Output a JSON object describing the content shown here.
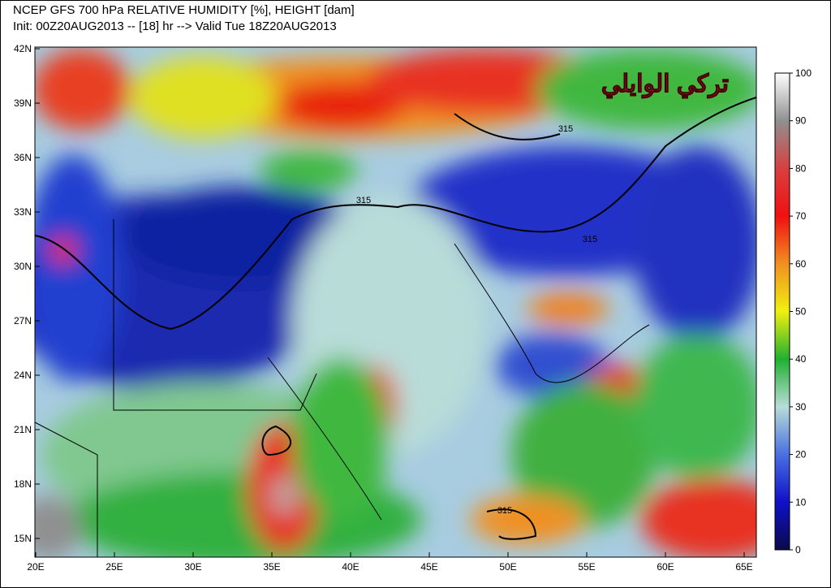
{
  "header": {
    "title": "NCEP GFS 700 hPa RELATIVE HUMIDITY [%], HEIGHT [dam]",
    "subtitle": "Init: 00Z20AUG2013 -- [18] hr --> Valid Tue 18Z20AUG2013"
  },
  "map": {
    "lat_labels": [
      "42N",
      "39N",
      "36N",
      "33N",
      "30N",
      "27N",
      "24N",
      "21N",
      "18N",
      "15N"
    ],
    "lon_labels": [
      "20E",
      "25E",
      "30E",
      "35E",
      "40E",
      "45E",
      "50E",
      "55E",
      "60E",
      "65E"
    ],
    "contour_labels": [
      "315",
      "315",
      "315",
      "315"
    ],
    "watermark": "تركي الوايلي"
  },
  "colorbar": {
    "ticks": [
      0,
      10,
      20,
      30,
      40,
      50,
      60,
      70,
      80,
      90,
      100
    ]
  }
}
